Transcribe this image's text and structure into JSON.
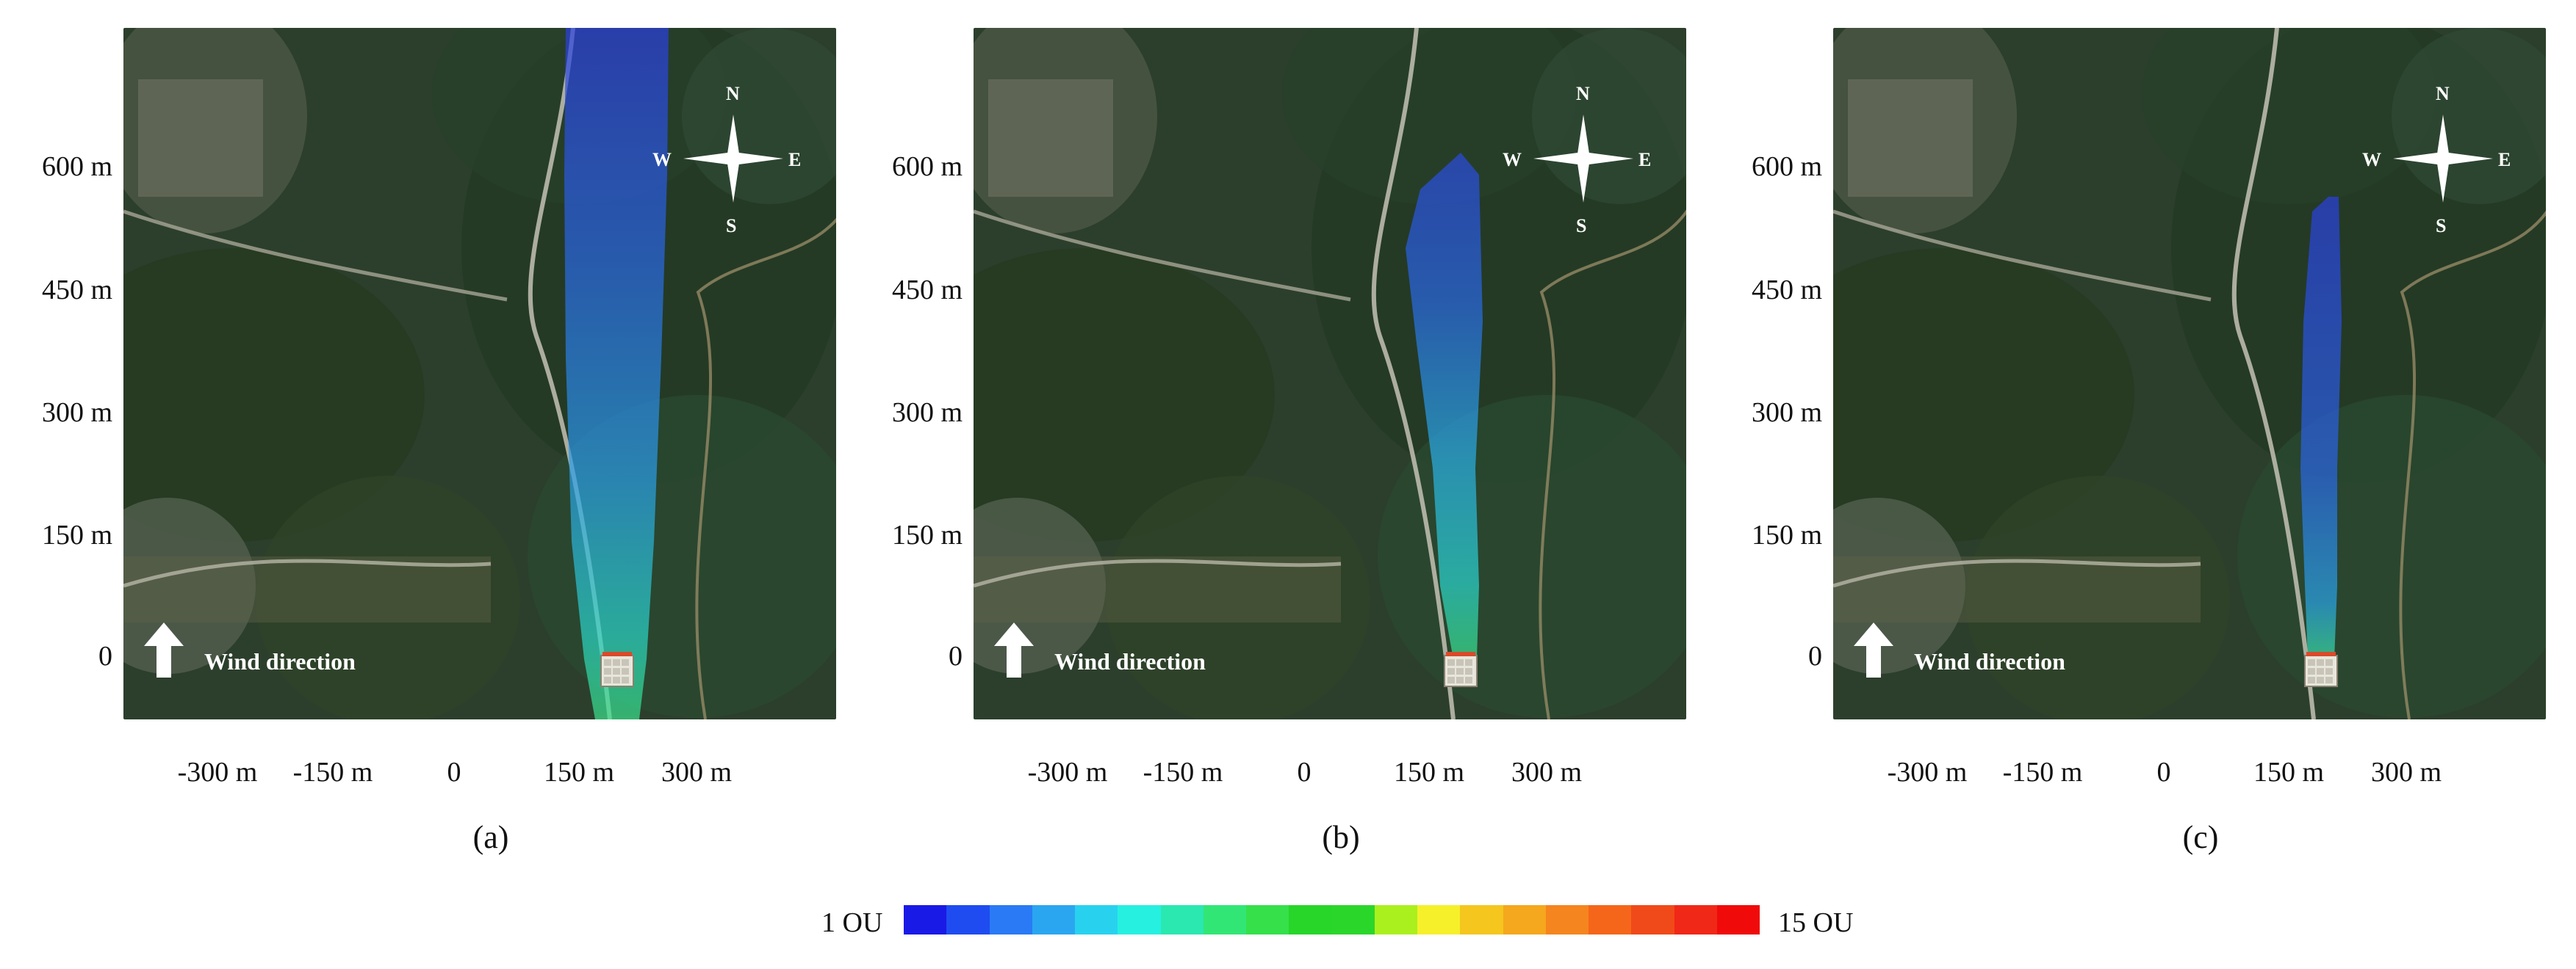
{
  "panels": [
    {
      "label": "(a)",
      "plume_length_m": 850,
      "plume_peak": "green"
    },
    {
      "label": "(b)",
      "plume_length_m": 650,
      "plume_peak": "cyan"
    },
    {
      "label": "(c)",
      "plume_length_m": 560,
      "plume_peak": "blue"
    }
  ],
  "y_ticks": [
    "600 m",
    "450 m",
    "300 m",
    "150 m",
    "0"
  ],
  "x_ticks": [
    "-300 m",
    "-150 m",
    "0",
    "150 m",
    "300 m"
  ],
  "wind_label": "Wind direction",
  "compass": {
    "n": "N",
    "s": "S",
    "e": "E",
    "w": "W"
  },
  "legend": {
    "min_label": "1 OU",
    "max_label": "15 OU",
    "colors": [
      "#1a1ae6",
      "#1f4cf0",
      "#2a7af5",
      "#2aa6f0",
      "#28d2ef",
      "#26f0e0",
      "#2ae8b0",
      "#32e676",
      "#35e04a",
      "#27d629",
      "#2bd62b",
      "#aaf01e",
      "#f5f02a",
      "#f5c61e",
      "#f5a71e",
      "#f5851e",
      "#f5661a",
      "#f04a1a",
      "#f02818",
      "#f00a0a"
    ],
    "colors_meta": "gradient blue to red"
  }
}
